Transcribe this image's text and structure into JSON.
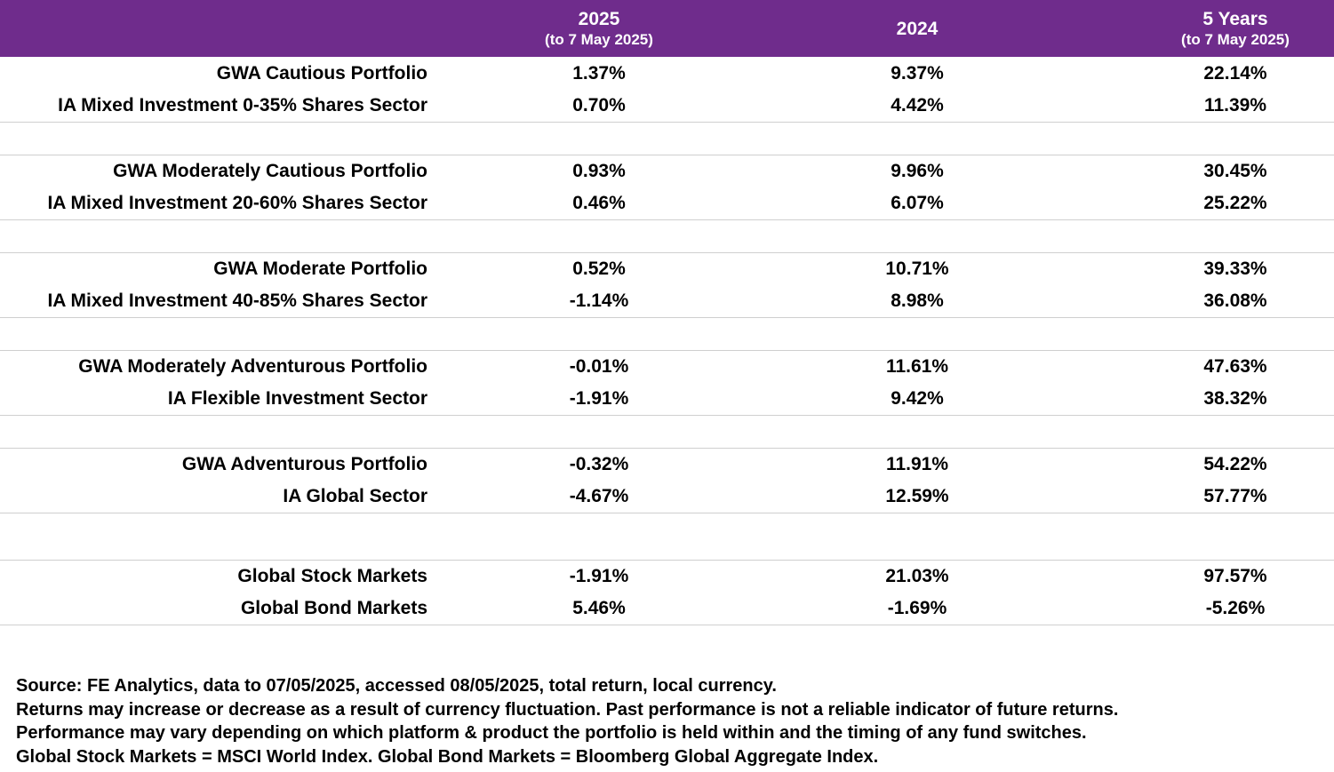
{
  "colors": {
    "header_bg": "#6f2c8c",
    "header_text": "#ffffff",
    "separator": "#cfcfcf"
  },
  "header": {
    "col1": {
      "main": "2025",
      "sub": "(to 7 May 2025)"
    },
    "col2": {
      "main": "2024",
      "sub": ""
    },
    "col3": {
      "main": "5 Years",
      "sub": "(to 7 May 2025)"
    }
  },
  "rows": [
    {
      "label": "GWA Cautious Portfolio",
      "v2025": "1.37%",
      "v2024": "9.37%",
      "v5y": "22.14%"
    },
    {
      "label": "IA Mixed Investment 0-35% Shares Sector",
      "v2025": "0.70%",
      "v2024": "4.42%",
      "v5y": "11.39%"
    },
    {
      "label": "GWA Moderately Cautious Portfolio",
      "v2025": "0.93%",
      "v2024": "9.96%",
      "v5y": "30.45%"
    },
    {
      "label": "IA Mixed Investment 20-60% Shares Sector",
      "v2025": "0.46%",
      "v2024": "6.07%",
      "v5y": "25.22%"
    },
    {
      "label": "GWA Moderate Portfolio",
      "v2025": "0.52%",
      "v2024": "10.71%",
      "v5y": "39.33%"
    },
    {
      "label": "IA Mixed Investment 40-85% Shares Sector",
      "v2025": "-1.14%",
      "v2024": "8.98%",
      "v5y": "36.08%"
    },
    {
      "label": "GWA Moderately Adventurous Portfolio",
      "v2025": "-0.01%",
      "v2024": "11.61%",
      "v5y": "47.63%"
    },
    {
      "label": "IA Flexible Investment Sector",
      "v2025": "-1.91%",
      "v2024": "9.42%",
      "v5y": "38.32%"
    },
    {
      "label": "GWA Adventurous Portfolio",
      "v2025": "-0.32%",
      "v2024": "11.91%",
      "v5y": "54.22%"
    },
    {
      "label": "IA Global Sector",
      "v2025": "-4.67%",
      "v2024": "12.59%",
      "v5y": "57.77%"
    },
    {
      "label": "Global Stock Markets",
      "v2025": "-1.91%",
      "v2024": "21.03%",
      "v5y": "97.57%"
    },
    {
      "label": "Global Bond Markets",
      "v2025": "5.46%",
      "v2024": "-1.69%",
      "v5y": "-5.26%"
    }
  ],
  "footer": {
    "line1": "Source: FE Analytics, data to 07/05/2025, accessed 08/05/2025, total return, local currency.",
    "line2": "Returns may increase or decrease as a result of currency fluctuation. Past performance is not a reliable indicator of future returns.",
    "line3": "Performance may vary depending on which platform & product the portfolio is held within and the timing of any fund switches.",
    "line4": "Global Stock Markets = MSCI World Index.  Global Bond Markets = Bloomberg Global Aggregate Index."
  }
}
